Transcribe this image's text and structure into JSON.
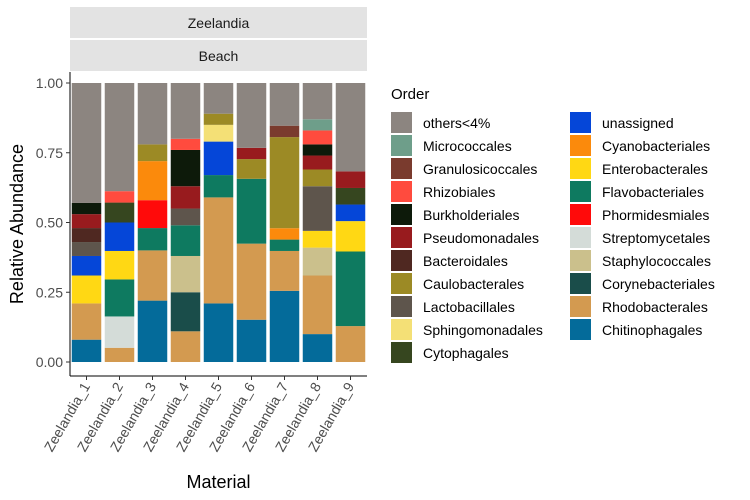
{
  "chart_data": {
    "type": "bar",
    "stacked": true,
    "facet_labels": [
      "Zeelandia",
      "Beach"
    ],
    "xlabel": "Material",
    "ylabel": "Relative Abundance",
    "ylim": [
      0,
      1
    ],
    "yticks": [
      "0.00",
      "0.25",
      "0.50",
      "0.75",
      "1.00"
    ],
    "grid": false,
    "legend_title": "Order",
    "legend_position": "right",
    "categories": [
      "Zeelandia_1",
      "Zeelandia_2",
      "Zeelandia_3",
      "Zeelandia_4",
      "Zeelandia_5",
      "Zeelandia_6",
      "Zeelandia_7",
      "Zeelandia_8",
      "Zeelandia_9"
    ],
    "stack_order": [
      "Chitinophagales",
      "Rhodobacterales",
      "Corynebacteriales",
      "Staphylococcales",
      "Streptomycetales",
      "Flavobacteriales",
      "Phormidesmiales",
      "Enterobacterales",
      "Cyanobacteriales",
      "unassigned",
      "Cytophagales",
      "Sphingomonadales",
      "Lactobacillales",
      "Caulobacterales",
      "Bacteroidales",
      "Pseudomonadales",
      "Burkholderiales",
      "Rhizobiales",
      "Granulosicoccales",
      "Micrococcales",
      "others<4%"
    ],
    "series": [
      {
        "name": "others<4%",
        "color": "#8C8580",
        "values": [
          0.43,
          0.38,
          0.22,
          0.2,
          0.11,
          0.23,
          0.15,
          0.13,
          0.32
        ]
      },
      {
        "name": "Micrococcales",
        "color": "#6E9E8A",
        "values": [
          0,
          0,
          0,
          0,
          0,
          0,
          0,
          0.04,
          0
        ]
      },
      {
        "name": "Granulosicoccales",
        "color": "#7A3B2E",
        "values": [
          0,
          0,
          0,
          0,
          0,
          0,
          0.04,
          0,
          0
        ]
      },
      {
        "name": "Rhizobiales",
        "color": "#FF4B3E",
        "values": [
          0,
          0.04,
          0,
          0.04,
          0,
          0,
          0,
          0.05,
          0
        ]
      },
      {
        "name": "Burkholderiales",
        "color": "#0D1A0A",
        "values": [
          0.04,
          0,
          0,
          0.13,
          0,
          0,
          0,
          0.04,
          0
        ]
      },
      {
        "name": "Pseudomonadales",
        "color": "#981B1E",
        "values": [
          0.05,
          0,
          0,
          0.08,
          0,
          0.04,
          0,
          0.05,
          0.06
        ]
      },
      {
        "name": "Bacteroidales",
        "color": "#4F2821",
        "values": [
          0.05,
          0,
          0,
          0,
          0,
          0,
          0,
          0,
          0
        ]
      },
      {
        "name": "Caulobacterales",
        "color": "#9C8A25",
        "values": [
          0,
          0,
          0.06,
          0,
          0.04,
          0.07,
          0.32,
          0.06,
          0
        ]
      },
      {
        "name": "Lactobacillales",
        "color": "#5E554C",
        "values": [
          0.05,
          0,
          0,
          0.06,
          0,
          0,
          0,
          0.16,
          0
        ]
      },
      {
        "name": "Sphingomonadales",
        "color": "#F4E076",
        "values": [
          0,
          0,
          0,
          0,
          0.06,
          0,
          0,
          0,
          0
        ]
      },
      {
        "name": "Cytophagales",
        "color": "#36461F",
        "values": [
          0,
          0.07,
          0,
          0,
          0,
          0,
          0,
          0,
          0.06
        ]
      },
      {
        "name": "unassigned",
        "color": "#0546D8",
        "values": [
          0.07,
          0.1,
          0,
          0,
          0.12,
          0,
          0,
          0,
          0.06
        ]
      },
      {
        "name": "Cyanobacteriales",
        "color": "#FB8A0C",
        "values": [
          0,
          0,
          0.14,
          0,
          0,
          0,
          0.04,
          0,
          0
        ]
      },
      {
        "name": "Enterobacterales",
        "color": "#FFD814",
        "values": [
          0.1,
          0.1,
          0,
          0,
          0,
          0,
          0,
          0.06,
          0.11
        ]
      },
      {
        "name": "Flavobacteriales",
        "color": "#0E7A60",
        "values": [
          0,
          0.13,
          0.08,
          0.11,
          0.08,
          0.23,
          0.04,
          0,
          0.27
        ]
      },
      {
        "name": "Phormidesmiales",
        "color": "#FF0A0A",
        "values": [
          0,
          0,
          0.1,
          0,
          0,
          0,
          0,
          0,
          0
        ]
      },
      {
        "name": "Streptomycetales",
        "color": "#D4DCD8",
        "values": [
          0,
          0.11,
          0,
          0,
          0,
          0,
          0,
          0,
          0
        ]
      },
      {
        "name": "Staphylococcales",
        "color": "#CBC08C",
        "values": [
          0,
          0,
          0,
          0.13,
          0,
          0,
          0,
          0.1,
          0
        ]
      },
      {
        "name": "Corynebacteriales",
        "color": "#1A4D4A",
        "values": [
          0,
          0,
          0,
          0.14,
          0,
          0,
          0,
          0,
          0
        ]
      },
      {
        "name": "Rhodobacterales",
        "color": "#D39A50",
        "values": [
          0.13,
          0.05,
          0.18,
          0.11,
          0.38,
          0.27,
          0.14,
          0.21,
          0.13
        ]
      },
      {
        "name": "Chitinophagales",
        "color": "#046B9A",
        "values": [
          0.08,
          0,
          0.22,
          0,
          0.21,
          0.15,
          0.25,
          0.1,
          0
        ]
      }
    ],
    "legend_columns": [
      [
        "others<4%",
        "Micrococcales",
        "Granulosicoccales",
        "Rhizobiales",
        "Burkholderiales",
        "Pseudomonadales",
        "Bacteroidales",
        "Caulobacterales",
        "Lactobacillales",
        "Sphingomonadales",
        "Cytophagales"
      ],
      [
        "unassigned",
        "Cyanobacteriales",
        "Enterobacterales",
        "Flavobacteriales",
        "Phormidesmiales",
        "Streptomycetales",
        "Staphylococcales",
        "Corynebacteriales",
        "Rhodobacterales",
        "Chitinophagales"
      ]
    ]
  }
}
